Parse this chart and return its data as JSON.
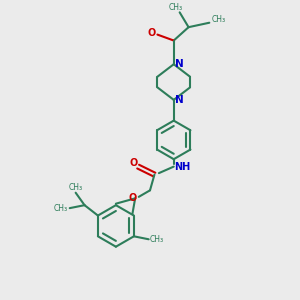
{
  "background_color": "#ebebeb",
  "bond_color": "#2d7d5a",
  "N_color": "#0000cc",
  "O_color": "#cc0000",
  "line_width": 1.5,
  "figsize": [
    3.0,
    3.0
  ],
  "dpi": 100,
  "xlim": [
    0,
    10
  ],
  "ylim": [
    0,
    10
  ]
}
